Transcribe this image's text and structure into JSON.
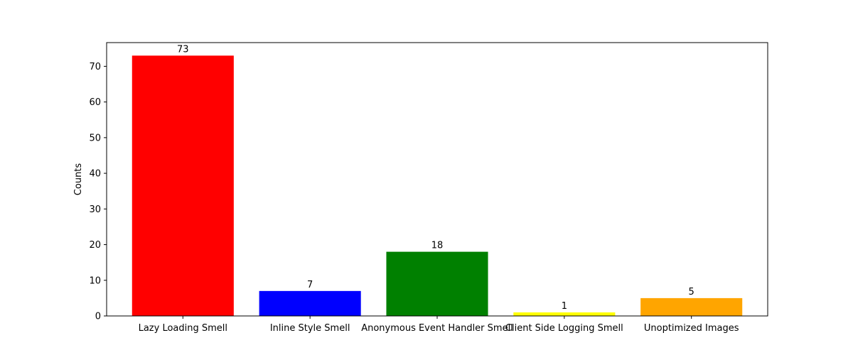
{
  "chart_data": {
    "type": "bar",
    "title": "",
    "xlabel": "",
    "ylabel": "Counts",
    "categories": [
      "Lazy Loading Smell",
      "Inline Style Smell",
      "Anonymous Event Handler Smell",
      "Client Side Logging Smell",
      "Unoptimized Images"
    ],
    "values": [
      73,
      7,
      18,
      1,
      5
    ],
    "colors": [
      "#ff0000",
      "#0000ff",
      "#008000",
      "#ffff00",
      "#ffa500"
    ],
    "ylim": [
      0,
      76.65
    ],
    "yticks": [
      0,
      10,
      20,
      30,
      40,
      50,
      60,
      70
    ],
    "grid": false,
    "legend": "none"
  }
}
